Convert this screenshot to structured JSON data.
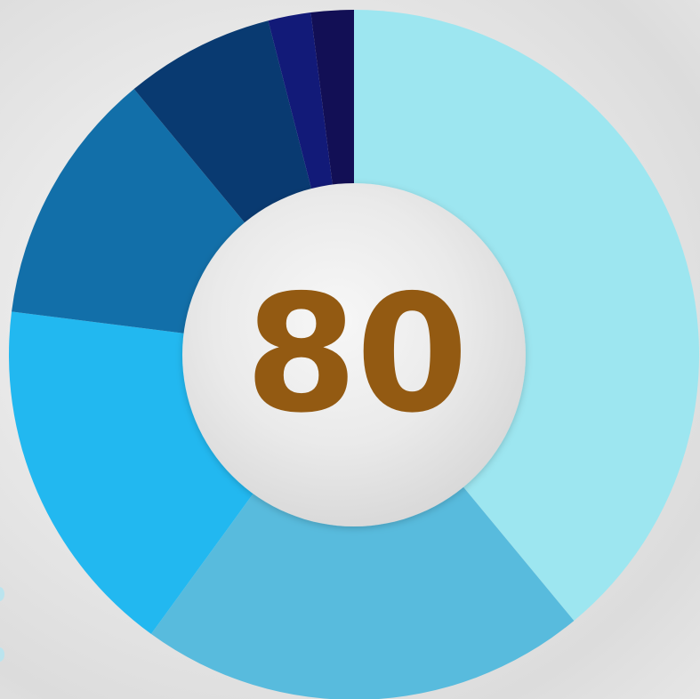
{
  "chart_data": {
    "type": "pie",
    "variant": "donut",
    "center_label": "80",
    "categories": [
      "",
      "",
      "",
      "",
      "",
      "",
      ""
    ],
    "values": [
      39,
      21,
      17,
      12,
      7,
      2,
      2
    ],
    "colors": [
      "#9de6f0",
      "#58bbdd",
      "#22b8f0",
      "#126fa9",
      "#093a71",
      "#121a78",
      "#120f55"
    ],
    "start_angle_deg": 0,
    "direction": "clockwise",
    "legend": "none"
  },
  "style": {
    "center_text_color": "#935a12",
    "hole_color": "#ececec"
  }
}
